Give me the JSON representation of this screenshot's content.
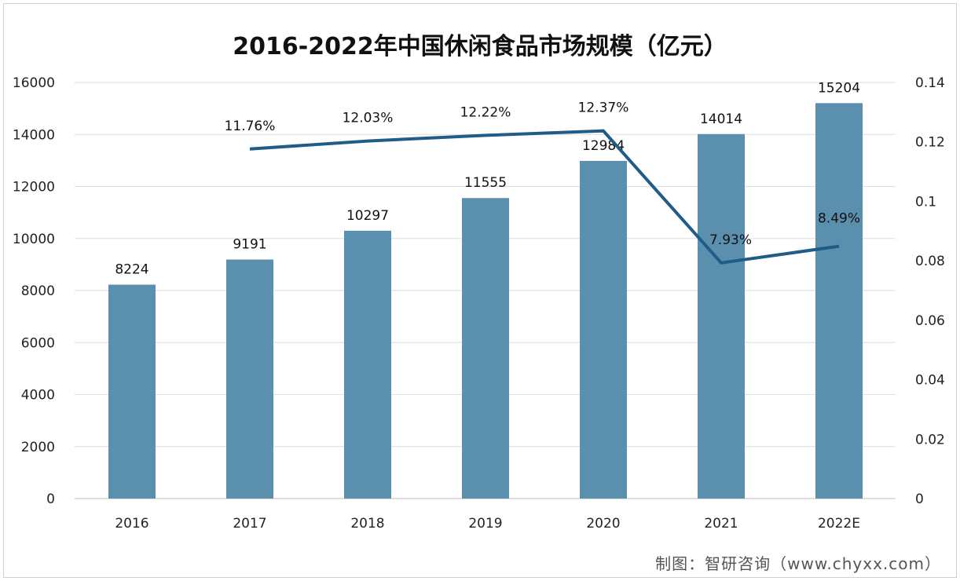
{
  "chart_data": {
    "type": "bar+line",
    "title": "2016-2022年中国休闲食品市场规模（亿元）",
    "source": "制图：智研咨询（www.chyxx.com）",
    "categories": [
      "2016",
      "2017",
      "2018",
      "2019",
      "2020",
      "2021",
      "2022E"
    ],
    "series": [
      {
        "type": "bar",
        "axis": "left",
        "values": [
          8224,
          9191,
          10297,
          11555,
          12984,
          14014,
          15204
        ],
        "labels": [
          "8224",
          "9191",
          "10297",
          "11555",
          "12984",
          "14014",
          "15204"
        ],
        "color": "#5b8fae"
      },
      {
        "type": "line",
        "axis": "right",
        "values": [
          null,
          0.1176,
          0.1203,
          0.1222,
          0.1237,
          0.0793,
          0.0849
        ],
        "labels": [
          "",
          "11.76%",
          "12.03%",
          "12.22%",
          "12.37%",
          "7.93%",
          "8.49%"
        ],
        "color": "#1f5c88"
      }
    ],
    "yleft": {
      "lim": [
        0,
        16000
      ],
      "ticks": [
        "0",
        "2000",
        "4000",
        "6000",
        "8000",
        "10000",
        "12000",
        "14000",
        "16000"
      ]
    },
    "yright": {
      "lim": [
        0,
        0.14
      ],
      "ticks": [
        "0",
        "0.02",
        "0.04",
        "0.06",
        "0.08",
        "0.1",
        "0.12",
        "0.14"
      ]
    },
    "grid": true,
    "legend": "none"
  }
}
